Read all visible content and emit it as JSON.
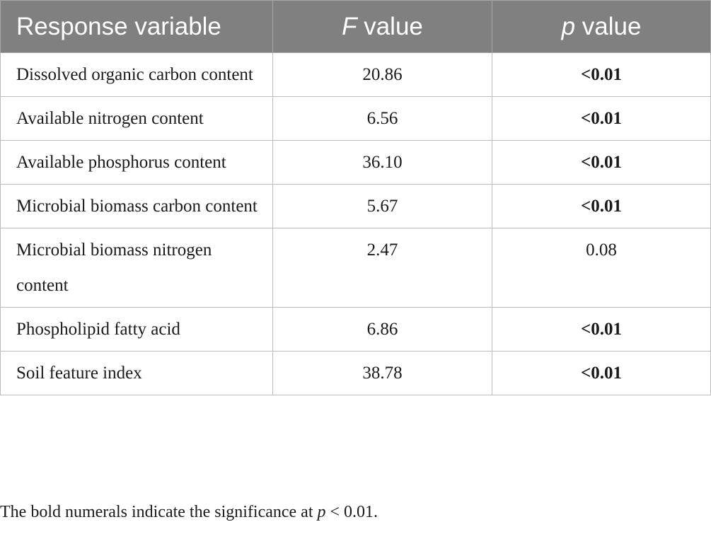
{
  "table": {
    "headers": {
      "col1": "Response variable",
      "col2_italic": "F",
      "col2_rest": " value",
      "col3_italic": "p",
      "col3_rest": " value"
    },
    "rows": [
      {
        "variable": "Dissolved organic carbon content",
        "f": "20.86",
        "p": "<0.01",
        "significant": true
      },
      {
        "variable": "Available nitrogen content",
        "f": "6.56",
        "p": "<0.01",
        "significant": true
      },
      {
        "variable": "Available phosphorus content",
        "f": "36.10",
        "p": "<0.01",
        "significant": true
      },
      {
        "variable": "Microbial biomass carbon content",
        "f": "5.67",
        "p": "<0.01",
        "significant": true
      },
      {
        "variable": "Microbial biomass nitrogen content",
        "f": "2.47",
        "p": "0.08",
        "significant": false
      },
      {
        "variable": "Phospholipid fatty acid",
        "f": "6.86",
        "p": "<0.01",
        "significant": true
      },
      {
        "variable": "Soil feature index",
        "f": "38.78",
        "p": "<0.01",
        "significant": true
      }
    ]
  },
  "footnote": {
    "before": "The bold numerals indicate the significance at ",
    "italic": "p",
    "after": " < 0.01."
  }
}
